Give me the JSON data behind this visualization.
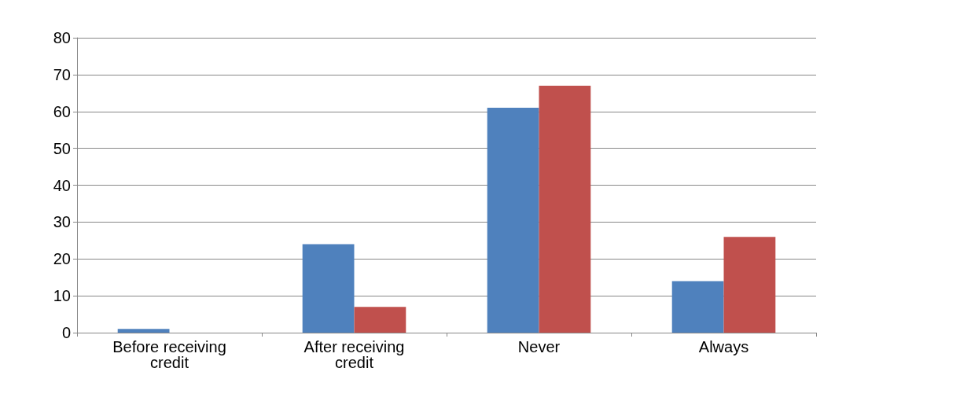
{
  "chart_data": {
    "type": "bar",
    "categories": [
      "Before receiving credit",
      "After receiving credit",
      "Never",
      "Always"
    ],
    "series": [
      {
        "color": "#4f81bd",
        "values": [
          1,
          24,
          61,
          14
        ]
      },
      {
        "color": "#c0504d",
        "values": [
          0,
          7,
          67,
          26
        ]
      }
    ],
    "ylim": [
      0,
      80
    ],
    "yticks": [
      0,
      10,
      20,
      30,
      40,
      50,
      60,
      70,
      80
    ],
    "grid": "y"
  }
}
